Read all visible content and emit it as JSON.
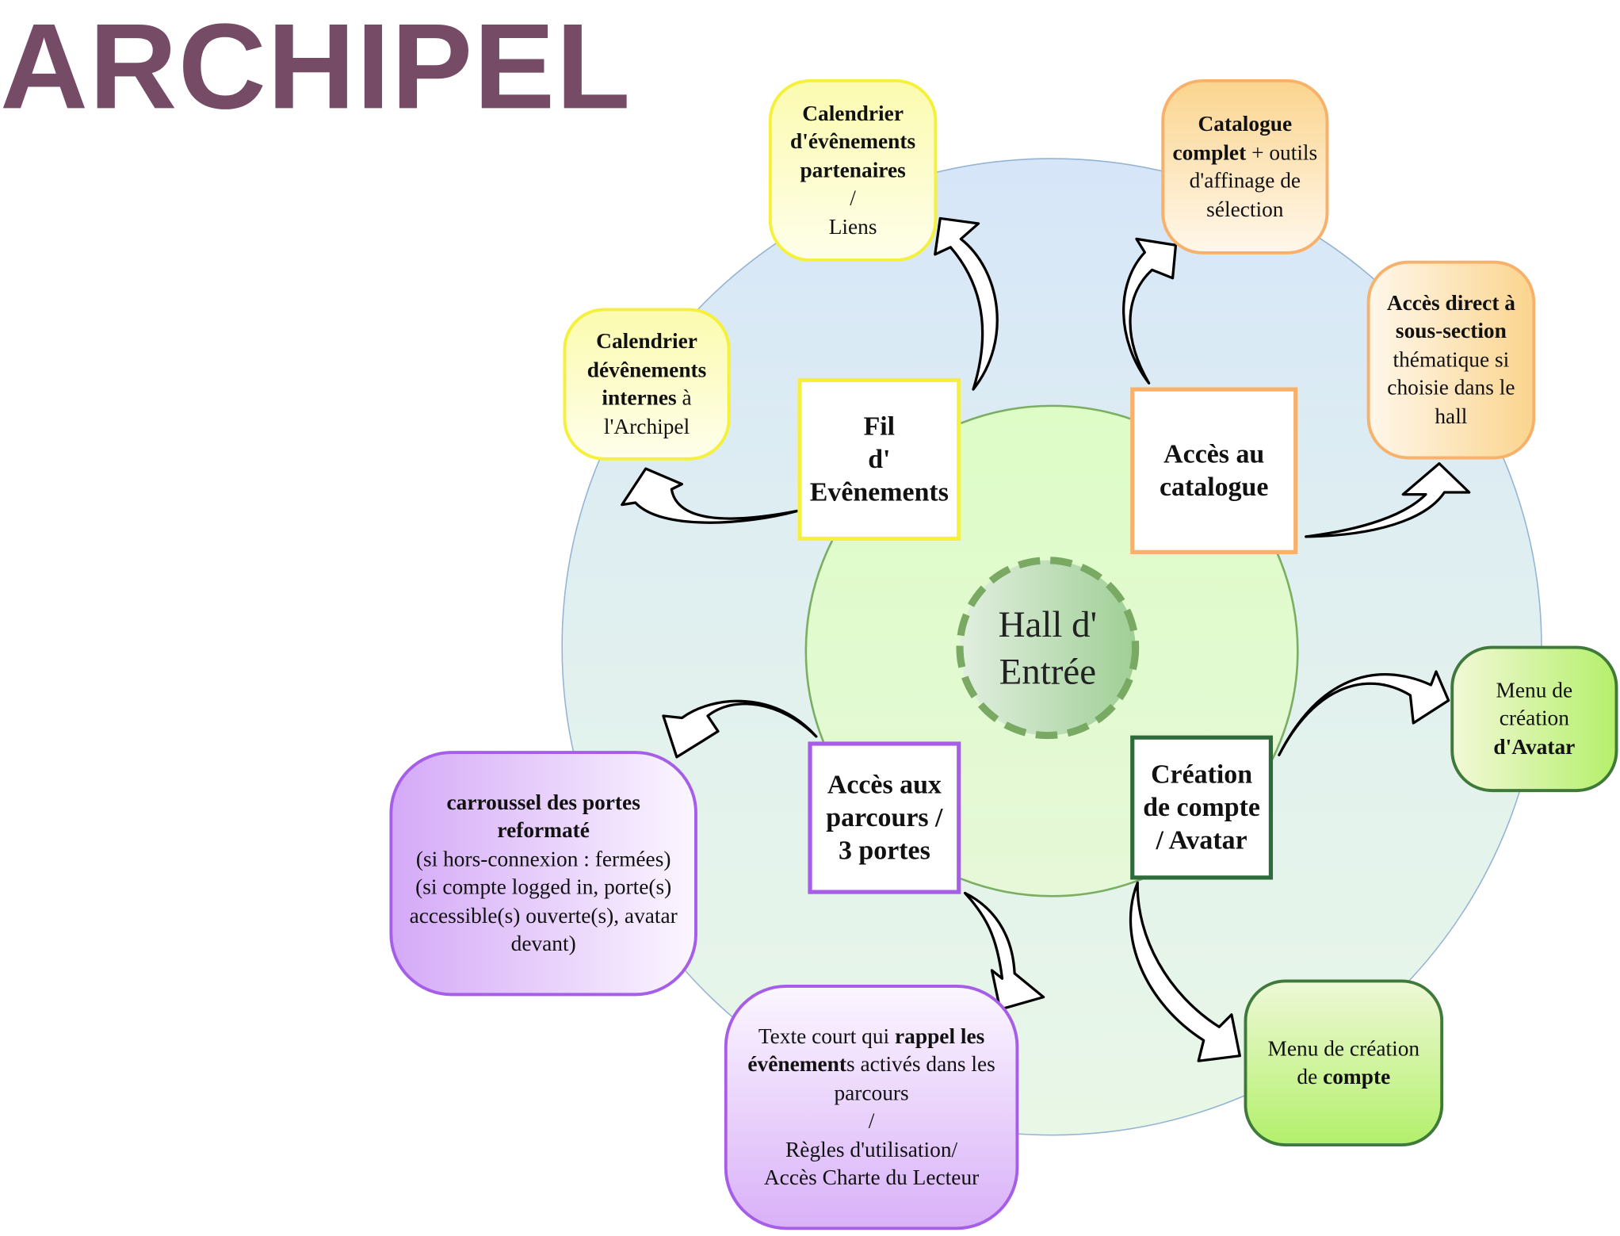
{
  "title": "ARCHIPEL",
  "center": {
    "line1": "Hall d'",
    "line2": "Entrée"
  },
  "hubs": {
    "events": {
      "line1": "Fil",
      "line2": "d'",
      "line3": "Evênements"
    },
    "catalog": {
      "line1": "Accès au",
      "line2": "catalogue"
    },
    "parcours": {
      "line1": "Accès aux",
      "line2": "parcours  /",
      "line3": "3 portes"
    },
    "account": {
      "line1": "Création",
      "line2": "de compte",
      "line3": "/ Avatar"
    }
  },
  "bubbles": {
    "partner_calendar": {
      "l1": "Calendrier",
      "l2": "d'évênements",
      "l3": "partenaires",
      "l4": "/",
      "l5": "Liens"
    },
    "internal_calendar": {
      "l1": "Calendrier",
      "l2": "dévênements",
      "l3_bold": "internes",
      "l3_rest": " à",
      "l4": "l'Archipel"
    },
    "full_catalog": {
      "l1": "Catalogue",
      "l2_bold": "complet",
      "l2_rest": " + outils",
      "l3": "d'affinage de",
      "l4": "sélection"
    },
    "subsection": {
      "l1": "Accès  direct à",
      "l2": "sous-section",
      "l3": "thématique si",
      "l4": "choisie  dans le",
      "l5": "hall"
    },
    "carousel": {
      "l1": "carroussel des portes",
      "l2": "reformaté",
      "l3": "(si hors-connexion : fermées)",
      "l4": "(si compte logged in, porte(s)",
      "l5": "accessible(s) ouverte(s), avatar",
      "l6": "devant)"
    },
    "reminder": {
      "l1_a": "Texte court qui ",
      "l1_b": "rappel les",
      "l2_b": "évênement",
      "l2_c": "s activés dans les",
      "l3": "parcours",
      "l4": "/",
      "l5": "Règles d'utilisation/",
      "l6": "Accès Charte du Lecteur"
    },
    "avatar_menu": {
      "l1": "Menu de",
      "l2": "création",
      "l3": "d'Avatar"
    },
    "account_menu": {
      "l1": "Menu de création",
      "l2_a": "de ",
      "l2_b": "compte"
    }
  },
  "colors": {
    "title": "#754b66",
    "yellow_border": "#f5f03a",
    "orange_border": "#f8b16a",
    "purple_border": "#a65ee8",
    "green_border": "#2e6b3a",
    "light_green_border": "#3f7a3a",
    "outer_circle": "#dbe9f7",
    "inner_circle": "#dcf7c5"
  }
}
